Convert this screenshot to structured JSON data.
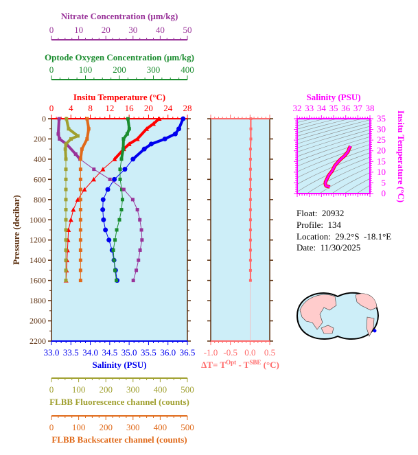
{
  "colors": {
    "nitrate": "#993399",
    "oxygen": "#1a8c2e",
    "temperature": "#ff0000",
    "salinity": "#0000ee",
    "fluorescence": "#a0a030",
    "backscatter": "#e06a1a",
    "delta_t": "#ff6a6a",
    "ts": "#ff00ff",
    "pressure_axis": "#5a2d0c",
    "plot_bg": "#cdeef8",
    "land": "#ffcccc"
  },
  "info": {
    "float": "Float:  20932",
    "profile": "Profile:  134",
    "location": "Location:  29.2°S  -18.1°E",
    "date": "Date:  11/30/2025"
  },
  "chart_data": [
    {
      "type": "line",
      "ylabel": "Pressure (decibar)",
      "ylim": [
        2200,
        0
      ],
      "yticks": [
        "0",
        "200",
        "400",
        "600",
        "800",
        "1000",
        "1200",
        "1400",
        "1600",
        "1800",
        "2000",
        "2200"
      ],
      "axes": {
        "nitrate": {
          "label": "Nitrate Concentration (μm/kg)",
          "range": [
            0,
            50
          ],
          "ticks": [
            "0",
            "10",
            "20",
            "30",
            "40",
            "50"
          ]
        },
        "oxygen": {
          "label": "Optode Oxygen Concentration (μm/kg)",
          "range": [
            0,
            400
          ],
          "ticks": [
            "0",
            "100",
            "200",
            "300",
            "400"
          ]
        },
        "temperature": {
          "label": "Insitu Temperature (°C)",
          "range": [
            0,
            28
          ],
          "ticks": [
            "0",
            "4",
            "8",
            "12",
            "16",
            "20",
            "24",
            "28"
          ]
        },
        "salinity": {
          "label": "Salinity (PSU)",
          "range": [
            33.0,
            36.5
          ],
          "ticks": [
            "33.0",
            "33.5",
            "34.0",
            "34.5",
            "35.0",
            "35.5",
            "36.0",
            "36.5"
          ]
        },
        "fluorescence": {
          "label": "FLBB Fluorescence channel (counts)",
          "range": [
            0,
            500
          ],
          "ticks": [
            "0",
            "100",
            "200",
            "300",
            "400",
            "500"
          ]
        },
        "backscatter": {
          "label": "FLBB Backscatter channel (counts)",
          "range": [
            0,
            500
          ],
          "ticks": [
            "0",
            "100",
            "200",
            "300",
            "400",
            "500"
          ]
        }
      },
      "series": {
        "temperature": {
          "pressure": [
            0,
            50,
            100,
            200,
            250,
            300,
            400,
            500,
            600,
            700,
            800,
            900,
            1000,
            1100,
            1200,
            1300,
            1400,
            1500,
            1600
          ],
          "values": [
            22.2,
            21.0,
            19.6,
            17.7,
            16.0,
            14.9,
            13.0,
            10.6,
            8.7,
            6.8,
            5.4,
            4.5,
            4.0,
            3.5,
            3.4,
            3.3,
            3.2,
            3.1,
            3.0
          ]
        },
        "salinity": {
          "pressure": [
            0,
            100,
            150,
            200,
            250,
            300,
            400,
            500,
            600,
            700,
            800,
            900,
            1000,
            1100,
            1200,
            1300,
            1400,
            1500,
            1600
          ],
          "values": [
            36.39,
            36.28,
            36.19,
            35.92,
            35.57,
            35.39,
            35.1,
            34.89,
            34.62,
            34.45,
            34.33,
            34.32,
            34.34,
            34.39,
            34.48,
            34.56,
            34.61,
            34.65,
            34.69
          ]
        },
        "oxygen": {
          "pressure": [
            0,
            100,
            150,
            200,
            300,
            400,
            500,
            600,
            700,
            800,
            900,
            1000,
            1100,
            1200,
            1300,
            1400,
            1500,
            1600
          ],
          "values": [
            225,
            229,
            223,
            212,
            211,
            206,
            202,
            202,
            207,
            209,
            206,
            200,
            192,
            187,
            182,
            184,
            187,
            191
          ]
        },
        "nitrate": {
          "pressure": [
            0,
            150,
            200,
            250,
            350,
            400,
            500,
            600,
            700,
            800,
            900,
            1000,
            1100,
            1200,
            1300,
            1400,
            1500,
            1600
          ],
          "values": [
            2.8,
            2.5,
            2.95,
            5.5,
            8.9,
            10.5,
            15.6,
            21.5,
            26.6,
            29.9,
            31.6,
            32.5,
            33.1,
            33.3,
            32.6,
            32.0,
            31.2,
            30.1
          ]
        },
        "fluorescence": {
          "pressure": [
            0,
            100,
            170,
            200,
            250,
            300,
            400,
            500,
            600,
            700,
            800,
            900,
            1000,
            1100,
            1200,
            1300,
            1400,
            1500,
            1600
          ],
          "values": [
            55,
            63,
            97,
            72,
            53,
            51,
            53,
            53,
            53,
            53,
            53,
            53,
            53,
            53,
            53,
            53,
            53,
            53,
            53
          ]
        },
        "backscatter": {
          "pressure": [
            0,
            100,
            200,
            300,
            400,
            500,
            600,
            700,
            800,
            900,
            1000,
            1100,
            1200,
            1300,
            1400,
            1500,
            1600
          ],
          "values": [
            131,
            137,
            131,
            112,
            107,
            107,
            107,
            107,
            107,
            107,
            107,
            107,
            107,
            107,
            107,
            107,
            107
          ]
        }
      }
    },
    {
      "type": "scatter",
      "xlabel": "ΔT= T",
      "xlabel_sup1": "Opt",
      "xlabel_mid": " - T",
      "xlabel_sup2": "SBE",
      "xlabel_end": " (°C)",
      "xlim": [
        -1.0,
        0.5
      ],
      "xticks": [
        "-1.0",
        "-0.5",
        "0.0",
        "0.5"
      ],
      "ylim": [
        2200,
        0
      ],
      "pressure": [
        0,
        100,
        200,
        300,
        400,
        500,
        600,
        700,
        800,
        900,
        1000,
        1100,
        1200,
        1300,
        1400,
        1500,
        1600
      ],
      "values": [
        0.02,
        0.02,
        0.02,
        0.01,
        0.01,
        0.01,
        0.01,
        0.01,
        0.01,
        0.01,
        0.01,
        0.01,
        0.01,
        0.01,
        0.01,
        0.01,
        0.01
      ]
    },
    {
      "type": "line",
      "xlabel": "Salinity (PSU)",
      "ylabel": "Insitu Temperature (°C)",
      "xlim": [
        32,
        38
      ],
      "ylim": [
        0,
        35
      ],
      "xticks": [
        "32",
        "33",
        "34",
        "35",
        "36",
        "37",
        "38"
      ],
      "yticks": [
        "0",
        "5",
        "10",
        "15",
        "20",
        "25",
        "30",
        "35"
      ],
      "density_contours": true
    }
  ]
}
